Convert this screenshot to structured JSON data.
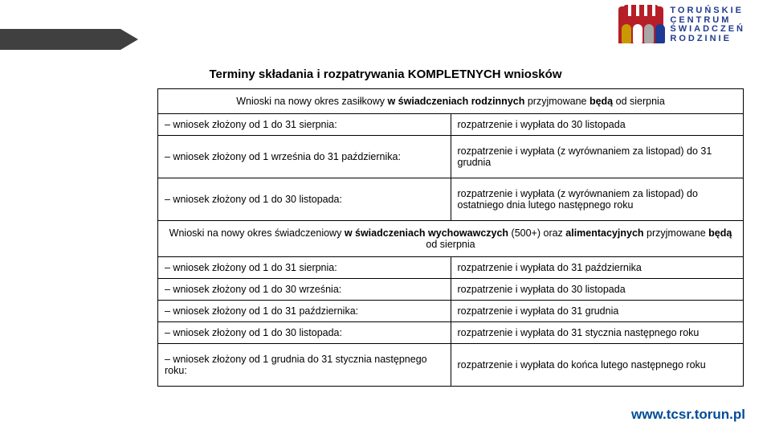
{
  "logo": {
    "text_lines": [
      "TORUŃSKIE",
      "CENTRUM",
      "ŚWIADCZEŃ",
      "RODZINIE"
    ],
    "bg_color": "#b61f27",
    "fig_colors": [
      "#c99a00",
      "#ffffff",
      "#a8a8a8",
      "#1f3a93"
    ],
    "text_color": "#213a8f"
  },
  "heading": "Terminy składania i rozpatrywania KOMPLETNYCH wniosków",
  "section1": {
    "prefix": "Wnioski na nowy okres zasiłkowy ",
    "bold1": "w świadczeniach rodzinnych",
    "mid": " przyjmowane ",
    "bold2": "będą",
    "suffix": " od sierpnia"
  },
  "section2": {
    "prefix": "Wnioski na nowy okres świadczeniowy ",
    "bold1": "w świadczeniach wychowawczych",
    "after1": " (500+) oraz ",
    "bold2": "alimentacyjnych",
    "mid": " przyjmowane ",
    "bold3": "będą",
    "suffix": " od sierpnia"
  },
  "rows1": [
    {
      "l": "– wniosek złożony od 1 do 31 sierpnia:",
      "r": "rozpatrzenie i wypłata do 30 listopada"
    },
    {
      "l": "– wniosek złożony od 1 września do 31 października:",
      "r": "rozpatrzenie i wypłata (z wyrównaniem za listopad) do 31 grudnia"
    },
    {
      "l": "– wniosek złożony od 1 do 30 listopada:",
      "r": "rozpatrzenie i wypłata (z wyrównaniem za listopad) do ostatniego dnia lutego następnego roku"
    }
  ],
  "rows2": [
    {
      "l": "– wniosek złożony od 1 do 31 sierpnia:",
      "r": "rozpatrzenie i wypłata do 31 października"
    },
    {
      "l": "– wniosek złożony od 1 do 30 września:",
      "r": "rozpatrzenie i wypłata do 30 listopada"
    },
    {
      "l": "– wniosek złożony od 1 do 31 października:",
      "r": "rozpatrzenie i wypłata do 31 grudnia"
    },
    {
      "l": "– wniosek złożony od 1 do 30 listopada:",
      "r": "rozpatrzenie i wypłata do 31 stycznia następnego roku"
    },
    {
      "l": "– wniosek złożony od 1 grudnia do 31 stycznia następnego roku:",
      "r": "rozpatrzenie i wypłata do końca lutego następnego roku"
    }
  ],
  "footer": {
    "text": "www.tcsr.torun.pl",
    "color": "#004c97"
  }
}
